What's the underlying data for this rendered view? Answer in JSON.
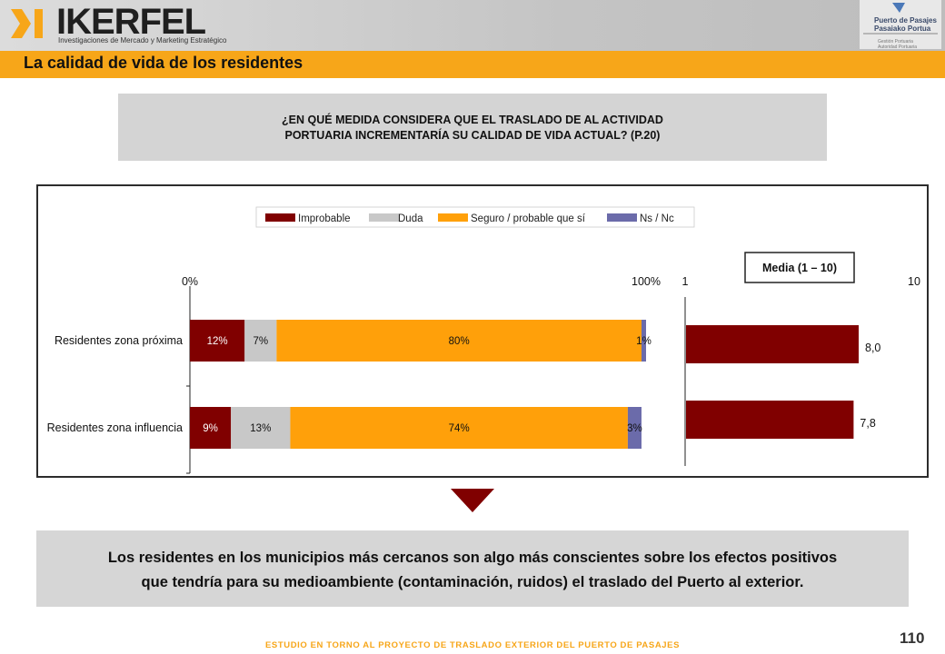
{
  "header": {
    "logo_text": "IKERFEL",
    "logo_subtitle": "Investigaciones de Mercado y Marketing Estratégico",
    "partner_name_1": "Puerto de Pasajes",
    "partner_name_2": "Pasaiako Portua",
    "partner_small_1": "Gestión Portuaria",
    "partner_small_2": "Autoridad Portuaria"
  },
  "section_title": "La calidad de vida de los residentes",
  "question": {
    "line1": "¿EN QUÉ MEDIDA CONSIDERA QUE EL TRASLADO DE AL ACTIVIDAD",
    "line2": "PORTUARIA INCREMENTARÍA SU CALIDAD DE VIDA ACTUAL? (P.20)"
  },
  "colors": {
    "improbable": "#800000",
    "duda": "#c8c8c8",
    "seguro": "#ffa00a",
    "nsnc": "#6b6baa",
    "orange": "#f7a619"
  },
  "chart_data": [
    {
      "type": "bar",
      "orientation": "horizontal",
      "stacked": true,
      "categories": [
        "Residentes zona próxima",
        "Residentes zona influencia"
      ],
      "series": [
        {
          "name": "Improbable",
          "values": [
            12,
            9
          ],
          "labels": [
            "12%",
            "9%"
          ]
        },
        {
          "name": "Duda",
          "values": [
            7,
            13
          ],
          "labels": [
            "7%",
            "13%"
          ]
        },
        {
          "name": "Seguro / probable que sí",
          "values": [
            80,
            74
          ],
          "labels": [
            "80%",
            "74%"
          ]
        },
        {
          "name": "Ns / Nc",
          "values": [
            1,
            3
          ],
          "labels": [
            "1%",
            "3%"
          ]
        }
      ],
      "xlim": [
        0,
        100
      ],
      "tick_labels": [
        "0%",
        "100%"
      ],
      "legend": "top"
    },
    {
      "type": "bar",
      "orientation": "horizontal",
      "title": "Media (1 – 10)",
      "categories": [
        "Residentes zona próxima",
        "Residentes zona influencia"
      ],
      "values": [
        8.0,
        7.8
      ],
      "value_labels": [
        "8,0",
        "7,8"
      ],
      "xlim": [
        1,
        10
      ],
      "tick_labels": [
        "1",
        "10"
      ]
    }
  ],
  "conclusion": {
    "line1": "Los residentes en los municipios más cercanos son algo más conscientes sobre los efectos positivos",
    "line2": "que tendría para su medioambiente (contaminación, ruidos) el traslado del Puerto al exterior."
  },
  "page_number": "110",
  "footer": "ESTUDIO EN TORNO AL PROYECTO DE TRASLADO EXTERIOR DEL PUERTO DE PASAJES"
}
